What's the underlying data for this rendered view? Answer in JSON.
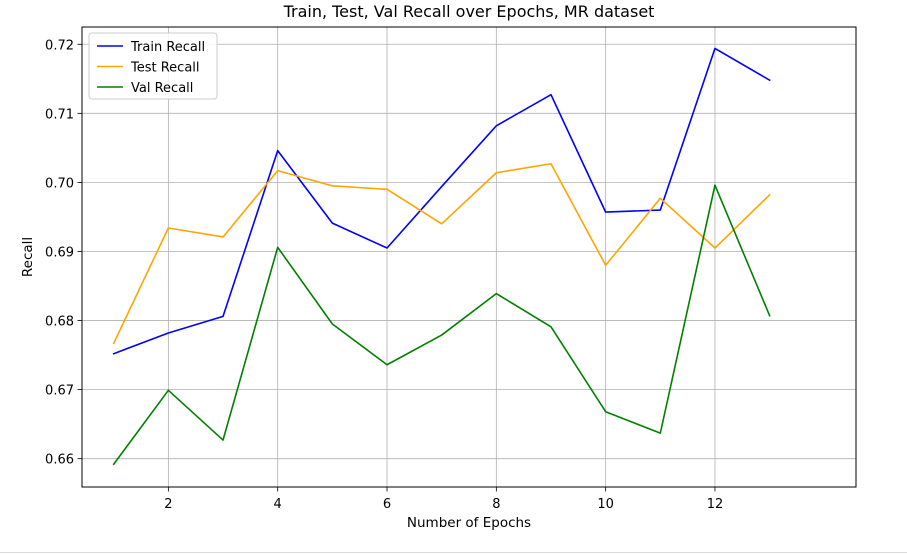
{
  "chart_data": {
    "type": "line",
    "title": "Train, Test, Val Recall over Epochs, MR dataset",
    "xlabel": "Number of Epochs",
    "ylabel": "Recall",
    "x": [
      1,
      2,
      3,
      4,
      5,
      6,
      7,
      8,
      9,
      10,
      11,
      12,
      13
    ],
    "xlim": [
      0.42,
      14.58
    ],
    "ylim": [
      0.6559,
      0.7225
    ],
    "xticks": [
      2,
      4,
      6,
      8,
      10,
      12
    ],
    "xtick_labels": [
      "2",
      "4",
      "6",
      "8",
      "10",
      "12"
    ],
    "yticks": [
      0.66,
      0.67,
      0.68,
      0.69,
      0.7,
      0.71,
      0.72
    ],
    "ytick_labels": [
      "0.66",
      "0.67",
      "0.68",
      "0.69",
      "0.70",
      "0.71",
      "0.72"
    ],
    "grid": true,
    "legend_position": "top-left",
    "series": [
      {
        "name": "Train Recall",
        "color": "#0000ff",
        "values": [
          0.6752,
          0.6782,
          0.6806,
          0.7046,
          0.6941,
          0.6905,
          0.6994,
          0.7082,
          0.7127,
          0.6957,
          0.696,
          0.7194,
          0.7148
        ]
      },
      {
        "name": "Test Recall",
        "color": "#ffa500",
        "values": [
          0.6767,
          0.6934,
          0.6921,
          0.7017,
          0.6995,
          0.699,
          0.694,
          0.7014,
          0.7027,
          0.688,
          0.6977,
          0.6905,
          0.6982
        ]
      },
      {
        "name": "Val Recall",
        "color": "#008000",
        "values": [
          0.6592,
          0.6699,
          0.6627,
          0.6906,
          0.6795,
          0.6736,
          0.6779,
          0.6839,
          0.6791,
          0.6668,
          0.6637,
          0.6996,
          0.6807
        ]
      }
    ]
  }
}
